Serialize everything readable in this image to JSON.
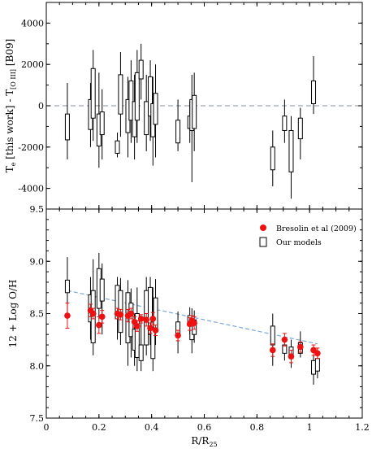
{
  "chart_data": [
    {
      "type": "box",
      "ylabel_main": "T",
      "ylabel_sub1": "e",
      "ylabel_mid": " [this work] - T",
      "ylabel_sub2": "[O III]",
      "ylabel_end": " [B09]",
      "xlim": [
        0,
        1.2
      ],
      "ylim": [
        -5000,
        5000
      ],
      "yticks": [
        "-4000",
        "-2000",
        "0",
        "2000",
        "4000"
      ],
      "yticks_values": [
        -4000,
        -2000,
        0,
        2000,
        4000
      ],
      "reference_line": 0,
      "colors": {
        "box": "#000000",
        "reference": "#9aa4ad"
      },
      "series": [
        {
          "name": "Our models",
          "boxes": [
            {
              "x": 0.08,
              "whisker_low": -2600,
              "q1": -1650,
              "q3": -400,
              "whisker_high": 1100
            },
            {
              "x": 0.168,
              "whisker_low": -2000,
              "q1": -1150,
              "q3": 300,
              "whisker_high": 1100
            },
            {
              "x": 0.178,
              "whisker_low": -1700,
              "q1": -600,
              "q3": 1800,
              "whisker_high": 2700
            },
            {
              "x": 0.2,
              "whisker_low": -3000,
              "q1": -1950,
              "q3": -400,
              "whisker_high": 1600
            },
            {
              "x": 0.212,
              "whisker_low": -2600,
              "q1": -1400,
              "q3": -300,
              "whisker_high": 800
            },
            {
              "x": 0.27,
              "whisker_low": -2500,
              "q1": -2300,
              "q3": -1700,
              "whisker_high": -1300
            },
            {
              "x": 0.282,
              "whisker_low": -1500,
              "q1": -400,
              "q3": 1500,
              "whisker_high": 2600
            },
            {
              "x": 0.31,
              "whisker_low": -2500,
              "q1": -1300,
              "q3": 300,
              "whisker_high": 1400
            },
            {
              "x": 0.322,
              "whisker_low": -1800,
              "q1": -700,
              "q3": 1200,
              "whisker_high": 2200
            },
            {
              "x": 0.335,
              "whisker_low": -2600,
              "q1": -1500,
              "q3": 200,
              "whisker_high": 1500
            },
            {
              "x": 0.345,
              "whisker_low": -1800,
              "q1": -700,
              "q3": 1600,
              "whisker_high": 2700
            },
            {
              "x": 0.36,
              "whisker_low": 300,
              "q1": 1300,
              "q3": 2200,
              "whisker_high": 3000
            },
            {
              "x": 0.38,
              "whisker_low": -2200,
              "q1": -1400,
              "q3": 200,
              "whisker_high": 1500
            },
            {
              "x": 0.395,
              "whisker_low": -1700,
              "q1": -500,
              "q3": 1400,
              "whisker_high": 2200
            },
            {
              "x": 0.405,
              "whisker_low": -2900,
              "q1": -1500,
              "q3": 100,
              "whisker_high": 1400
            },
            {
              "x": 0.415,
              "whisker_low": -2500,
              "q1": -900,
              "q3": 600,
              "whisker_high": 2000
            },
            {
              "x": 0.5,
              "whisker_low": -2200,
              "q1": -1800,
              "q3": -700,
              "whisker_high": 300
            },
            {
              "x": 0.545,
              "whisker_low": -1800,
              "q1": -1100,
              "q3": -500,
              "whisker_high": 200
            },
            {
              "x": 0.553,
              "whisker_low": -3700,
              "q1": -1200,
              "q3": 300,
              "whisker_high": 1500
            },
            {
              "x": 0.562,
              "whisker_low": -2200,
              "q1": -1100,
              "q3": 500,
              "whisker_high": 1600
            },
            {
              "x": 0.86,
              "whisker_low": -3900,
              "q1": -3100,
              "q3": -2000,
              "whisker_high": -1200
            },
            {
              "x": 0.905,
              "whisker_low": -1800,
              "q1": -1200,
              "q3": -500,
              "whisker_high": 300
            },
            {
              "x": 0.93,
              "whisker_low": -4500,
              "q1": -3200,
              "q3": -1200,
              "whisker_high": -500
            },
            {
              "x": 0.965,
              "whisker_low": -2600,
              "q1": -1600,
              "q3": -600,
              "whisker_high": -100
            },
            {
              "x": 1.015,
              "whisker_low": -400,
              "q1": 100,
              "q3": 1200,
              "whisker_high": 2400
            }
          ]
        }
      ]
    },
    {
      "type": "box+scatter",
      "xlabel_main": "R/R",
      "xlabel_sub": "25",
      "ylabel": "12 + Log O/H",
      "xlim": [
        0,
        1.2
      ],
      "ylim": [
        7.5,
        9.5
      ],
      "xticks": [
        "0",
        "0.2",
        "0.4",
        "0.6",
        "0.8",
        "1",
        "1.2"
      ],
      "xticks_values": [
        0,
        0.2,
        0.4,
        0.6,
        0.8,
        1.0,
        1.2
      ],
      "yticks": [
        "7.5",
        "8.0",
        "8.5",
        "9.0",
        "9.5"
      ],
      "yticks_values": [
        7.5,
        8.0,
        8.5,
        9.0,
        9.5
      ],
      "legend_position": "top-right",
      "colors": {
        "scatter": "#ee1111",
        "box": "#000000",
        "gradient": "#7aa7d9"
      },
      "gradient_line": {
        "x": [
          0.08,
          1.03
        ],
        "y": [
          8.72,
          8.21
        ]
      },
      "series": [
        {
          "name": "Bresolin et al (2009)",
          "kind": "scatter",
          "points": [
            {
              "x": 0.08,
              "y": 8.48,
              "err": 0.12
            },
            {
              "x": 0.168,
              "y": 8.53,
              "err": 0.06
            },
            {
              "x": 0.178,
              "y": 8.5,
              "err": 0.05
            },
            {
              "x": 0.2,
              "y": 8.39,
              "err": 0.08
            },
            {
              "x": 0.212,
              "y": 8.47,
              "err": 0.06
            },
            {
              "x": 0.27,
              "y": 8.5,
              "err": 0.05
            },
            {
              "x": 0.282,
              "y": 8.49,
              "err": 0.05
            },
            {
              "x": 0.31,
              "y": 8.48,
              "err": 0.06
            },
            {
              "x": 0.322,
              "y": 8.5,
              "err": 0.05
            },
            {
              "x": 0.335,
              "y": 8.42,
              "err": 0.05
            },
            {
              "x": 0.345,
              "y": 8.38,
              "err": 0.05
            },
            {
              "x": 0.36,
              "y": 8.45,
              "err": 0.04
            },
            {
              "x": 0.38,
              "y": 8.44,
              "err": 0.06
            },
            {
              "x": 0.395,
              "y": 8.36,
              "err": 0.05
            },
            {
              "x": 0.405,
              "y": 8.45,
              "err": 0.06
            },
            {
              "x": 0.415,
              "y": 8.34,
              "err": 0.05
            },
            {
              "x": 0.5,
              "y": 8.29,
              "err": 0.05
            },
            {
              "x": 0.545,
              "y": 8.4,
              "err": 0.06
            },
            {
              "x": 0.553,
              "y": 8.43,
              "err": 0.05
            },
            {
              "x": 0.562,
              "y": 8.41,
              "err": 0.06
            },
            {
              "x": 0.86,
              "y": 8.15,
              "err": 0.06
            },
            {
              "x": 0.905,
              "y": 8.25,
              "err": 0.06
            },
            {
              "x": 0.93,
              "y": 8.09,
              "err": 0.06
            },
            {
              "x": 0.965,
              "y": 8.18,
              "err": 0.05
            },
            {
              "x": 1.015,
              "y": 8.15,
              "err": 0.05
            },
            {
              "x": 1.03,
              "y": 8.12,
              "err": 0.05
            }
          ]
        },
        {
          "name": "Our models",
          "kind": "box",
          "boxes": [
            {
              "x": 0.08,
              "whisker_low": 8.45,
              "q1": 8.7,
              "q3": 8.82,
              "whisker_high": 9.04
            },
            {
              "x": 0.168,
              "whisker_low": 8.25,
              "q1": 8.42,
              "q3": 8.68,
              "whisker_high": 8.85
            },
            {
              "x": 0.178,
              "whisker_low": 8.1,
              "q1": 8.22,
              "q3": 8.72,
              "whisker_high": 9.02
            },
            {
              "x": 0.2,
              "whisker_low": 8.45,
              "q1": 8.55,
              "q3": 8.93,
              "whisker_high": 9.08
            },
            {
              "x": 0.212,
              "whisker_low": 8.3,
              "q1": 8.62,
              "q3": 8.83,
              "whisker_high": 8.98
            },
            {
              "x": 0.27,
              "whisker_low": 8.25,
              "q1": 8.45,
              "q3": 8.77,
              "whisker_high": 8.85
            },
            {
              "x": 0.282,
              "whisker_low": 8.2,
              "q1": 8.32,
              "q3": 8.72,
              "whisker_high": 8.84
            },
            {
              "x": 0.31,
              "whisker_low": 8.0,
              "q1": 8.22,
              "q3": 8.7,
              "whisker_high": 8.82
            },
            {
              "x": 0.322,
              "whisker_low": 8.08,
              "q1": 8.28,
              "q3": 8.6,
              "whisker_high": 8.74
            },
            {
              "x": 0.335,
              "whisker_low": 8.0,
              "q1": 8.15,
              "q3": 8.35,
              "whisker_high": 8.5
            },
            {
              "x": 0.345,
              "whisker_low": 7.95,
              "q1": 8.08,
              "q3": 8.5,
              "whisker_high": 8.75
            },
            {
              "x": 0.36,
              "whisker_low": 7.95,
              "q1": 8.05,
              "q3": 8.2,
              "whisker_high": 8.45
            },
            {
              "x": 0.38,
              "whisker_low": 8.1,
              "q1": 8.2,
              "q3": 8.72,
              "whisker_high": 8.85
            },
            {
              "x": 0.395,
              "whisker_low": 8.2,
              "q1": 8.3,
              "q3": 8.75,
              "whisker_high": 8.85
            },
            {
              "x": 0.405,
              "whisker_low": 7.95,
              "q1": 8.07,
              "q3": 8.42,
              "whisker_high": 8.75
            },
            {
              "x": 0.415,
              "whisker_low": 8.2,
              "q1": 8.35,
              "q3": 8.65,
              "whisker_high": 8.83
            },
            {
              "x": 0.5,
              "whisker_low": 8.12,
              "q1": 8.28,
              "q3": 8.42,
              "whisker_high": 8.52
            },
            {
              "x": 0.545,
              "whisker_low": 8.3,
              "q1": 8.38,
              "q3": 8.48,
              "whisker_high": 8.56
            },
            {
              "x": 0.553,
              "whisker_low": 8.12,
              "q1": 8.25,
              "q3": 8.45,
              "whisker_high": 8.55
            },
            {
              "x": 0.562,
              "whisker_low": 8.22,
              "q1": 8.3,
              "q3": 8.44,
              "whisker_high": 8.53
            },
            {
              "x": 0.86,
              "whisker_low": 8.0,
              "q1": 8.2,
              "q3": 8.38,
              "whisker_high": 8.5
            },
            {
              "x": 0.905,
              "whisker_low": 8.05,
              "q1": 8.12,
              "q3": 8.2,
              "whisker_high": 8.28
            },
            {
              "x": 0.93,
              "whisker_low": 7.98,
              "q1": 8.07,
              "q3": 8.18,
              "whisker_high": 8.25
            },
            {
              "x": 0.965,
              "whisker_low": 8.08,
              "q1": 8.12,
              "q3": 8.22,
              "whisker_high": 8.33
            },
            {
              "x": 1.015,
              "whisker_low": 7.82,
              "q1": 7.92,
              "q3": 8.05,
              "whisker_high": 8.16
            },
            {
              "x": 1.03,
              "whisker_low": 7.88,
              "q1": 7.95,
              "q3": 8.07,
              "whisker_high": 8.17
            }
          ]
        }
      ]
    }
  ]
}
